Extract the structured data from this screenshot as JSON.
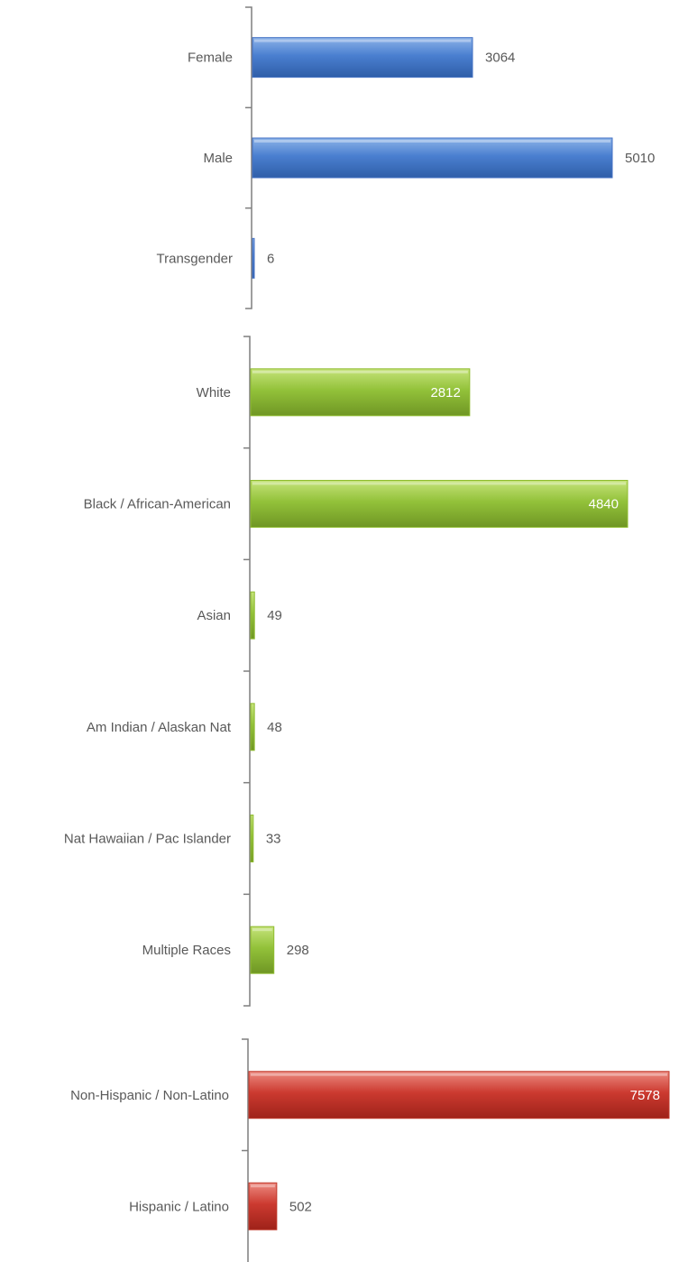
{
  "chart_data": [
    {
      "type": "bar",
      "orientation": "horizontal",
      "categories": [
        "Female",
        "Male",
        "Transgender"
      ],
      "values": [
        3064,
        5010,
        6
      ],
      "color": "#4472c4",
      "label_color": "#595959",
      "grid": false
    },
    {
      "type": "bar",
      "orientation": "horizontal",
      "categories": [
        "White",
        "Black / African-American",
        "Asian",
        "Am Indian / Alaskan Nat",
        "Nat Hawaiian / Pac Islander",
        "Multiple Races"
      ],
      "values": [
        2812,
        4840,
        49,
        48,
        33,
        298
      ],
      "color": "#8fbc2f",
      "label_color": "#595959",
      "inside_label_color": "#ffffff",
      "grid": false
    },
    {
      "type": "bar",
      "orientation": "horizontal",
      "categories": [
        "Non-Hispanic / Non-Latino",
        "Hispanic / Latino"
      ],
      "values": [
        7578,
        502
      ],
      "color": "#c0392b",
      "label_color": "#595959",
      "inside_label_color": "#ffffff",
      "grid": false
    }
  ]
}
